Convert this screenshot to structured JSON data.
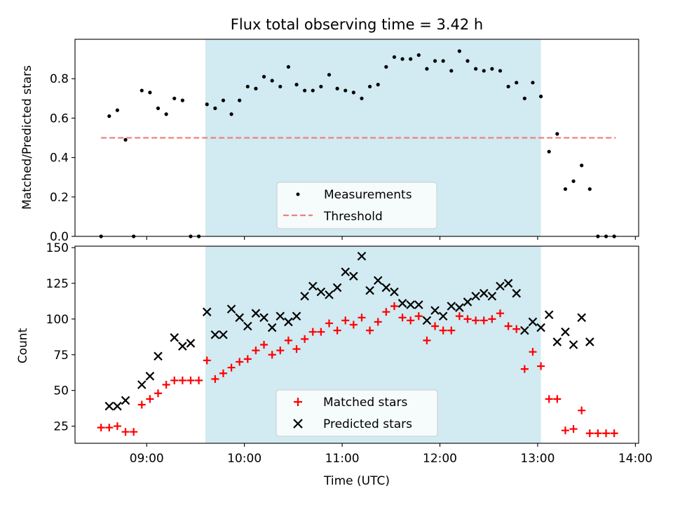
{
  "figure": {
    "title": "Flux total observing time = 3.42 h"
  },
  "colors": {
    "observing_band": "#add8e6",
    "threshold": "#f08080",
    "matched": "#ff0000",
    "predicted": "#000000",
    "measurement": "#000000"
  },
  "chart_data": [
    {
      "type": "scatter",
      "ylabel": "Matched/Predicted stars",
      "ylim": [
        0.0,
        1.0
      ],
      "yticks": [
        "0.0",
        "0.2",
        "0.4",
        "0.6",
        "0.8"
      ],
      "observing_window": {
        "start": "09:36",
        "end": "13:02"
      },
      "legend": {
        "position": "bottom-center",
        "entries": [
          "Measurements",
          "Threshold"
        ]
      },
      "threshold": {
        "name": "Threshold",
        "value": 0.5,
        "x": [
          "08:32",
          "13:48"
        ]
      },
      "series": [
        {
          "name": "Measurements",
          "x": [
            "08:32",
            "08:37",
            "08:42",
            "08:47",
            "08:52",
            "08:57",
            "09:02",
            "09:07",
            "09:12",
            "09:17",
            "09:22",
            "09:27",
            "09:32",
            "09:37",
            "09:42",
            "09:47",
            "09:52",
            "09:57",
            "10:02",
            "10:07",
            "10:12",
            "10:17",
            "10:22",
            "10:27",
            "10:32",
            "10:37",
            "10:42",
            "10:47",
            "10:52",
            "10:57",
            "11:02",
            "11:07",
            "11:12",
            "11:17",
            "11:22",
            "11:27",
            "11:32",
            "11:37",
            "11:42",
            "11:47",
            "11:52",
            "11:57",
            "12:02",
            "12:07",
            "12:12",
            "12:17",
            "12:22",
            "12:27",
            "12:32",
            "12:37",
            "12:42",
            "12:47",
            "12:52",
            "12:57",
            "13:02",
            "13:07",
            "13:12",
            "13:17",
            "13:22",
            "13:27",
            "13:32",
            "13:37",
            "13:42",
            "13:47"
          ],
          "y": [
            0.0,
            0.61,
            0.64,
            0.49,
            0.0,
            0.74,
            0.73,
            0.65,
            0.62,
            0.7,
            0.69,
            0.0,
            0.0,
            0.67,
            0.65,
            0.69,
            0.62,
            0.69,
            0.76,
            0.75,
            0.81,
            0.79,
            0.76,
            0.86,
            0.77,
            0.74,
            0.74,
            0.76,
            0.82,
            0.75,
            0.74,
            0.73,
            0.7,
            0.76,
            0.77,
            0.86,
            0.91,
            0.9,
            0.9,
            0.92,
            0.85,
            0.89,
            0.89,
            0.84,
            0.94,
            0.89,
            0.85,
            0.84,
            0.85,
            0.84,
            0.76,
            0.78,
            0.7,
            0.78,
            0.71,
            0.43,
            0.52,
            0.24,
            0.28,
            0.36,
            0.24,
            0.0,
            0.0,
            0.0
          ]
        }
      ]
    },
    {
      "type": "scatter",
      "xlabel": "Time (UTC)",
      "ylabel": "Count",
      "ylim": [
        13,
        151
      ],
      "yticks": [
        "25",
        "50",
        "75",
        "100",
        "125",
        "150"
      ],
      "xlim": [
        "08:16",
        "14:02"
      ],
      "xticks": [
        "09:00",
        "10:00",
        "11:00",
        "12:00",
        "13:00",
        "14:00"
      ],
      "legend": {
        "position": "bottom-center",
        "entries": [
          "Matched stars",
          "Predicted stars"
        ]
      },
      "series": [
        {
          "name": "Matched stars",
          "x": [
            "08:32",
            "08:37",
            "08:42",
            "08:47",
            "08:52",
            "08:57",
            "09:02",
            "09:07",
            "09:12",
            "09:17",
            "09:22",
            "09:27",
            "09:32",
            "09:37",
            "09:42",
            "09:47",
            "09:52",
            "09:57",
            "10:02",
            "10:07",
            "10:12",
            "10:17",
            "10:22",
            "10:27",
            "10:32",
            "10:37",
            "10:42",
            "10:47",
            "10:52",
            "10:57",
            "11:02",
            "11:07",
            "11:12",
            "11:17",
            "11:22",
            "11:27",
            "11:32",
            "11:37",
            "11:42",
            "11:47",
            "11:52",
            "11:57",
            "12:02",
            "12:07",
            "12:12",
            "12:17",
            "12:22",
            "12:27",
            "12:32",
            "12:37",
            "12:42",
            "12:47",
            "12:52",
            "12:57",
            "13:02",
            "13:07",
            "13:12",
            "13:17",
            "13:22",
            "13:27",
            "13:32",
            "13:37",
            "13:42",
            "13:47"
          ],
          "y": [
            24,
            24,
            25,
            21,
            21,
            40,
            44,
            48,
            54,
            57,
            57,
            57,
            57,
            71,
            58,
            62,
            66,
            70,
            72,
            78,
            82,
            75,
            78,
            85,
            79,
            86,
            91,
            91,
            97,
            92,
            99,
            96,
            101,
            92,
            98,
            105,
            109,
            101,
            99,
            102,
            85,
            95,
            92,
            92,
            102,
            100,
            99,
            99,
            100,
            104,
            95,
            93,
            65,
            77,
            67,
            44,
            44,
            22,
            23,
            36,
            20,
            20,
            20,
            20
          ]
        },
        {
          "name": "Predicted stars",
          "x": [
            "08:37",
            "08:42",
            "08:47",
            "08:57",
            "09:02",
            "09:07",
            "09:17",
            "09:22",
            "09:27",
            "09:37",
            "09:42",
            "09:47",
            "09:52",
            "09:57",
            "10:02",
            "10:07",
            "10:12",
            "10:17",
            "10:22",
            "10:27",
            "10:32",
            "10:37",
            "10:42",
            "10:47",
            "10:52",
            "10:57",
            "11:02",
            "11:07",
            "11:12",
            "11:17",
            "11:22",
            "11:27",
            "11:32",
            "11:37",
            "11:42",
            "11:47",
            "11:52",
            "11:57",
            "12:02",
            "12:07",
            "12:12",
            "12:17",
            "12:22",
            "12:27",
            "12:32",
            "12:37",
            "12:42",
            "12:47",
            "12:52",
            "12:57",
            "13:02",
            "13:07",
            "13:12",
            "13:17",
            "13:22",
            "13:27",
            "13:32"
          ],
          "y": [
            39,
            39,
            43,
            54,
            60,
            74,
            87,
            81,
            83,
            105,
            89,
            89,
            107,
            101,
            95,
            104,
            101,
            94,
            102,
            98,
            102,
            116,
            123,
            119,
            117,
            122,
            133,
            130,
            144,
            120,
            127,
            122,
            119,
            111,
            110,
            110,
            99,
            106,
            102,
            109,
            108,
            112,
            116,
            118,
            116,
            123,
            125,
            118,
            92,
            98,
            94,
            103,
            84,
            91,
            82,
            101,
            84
          ]
        }
      ]
    }
  ]
}
